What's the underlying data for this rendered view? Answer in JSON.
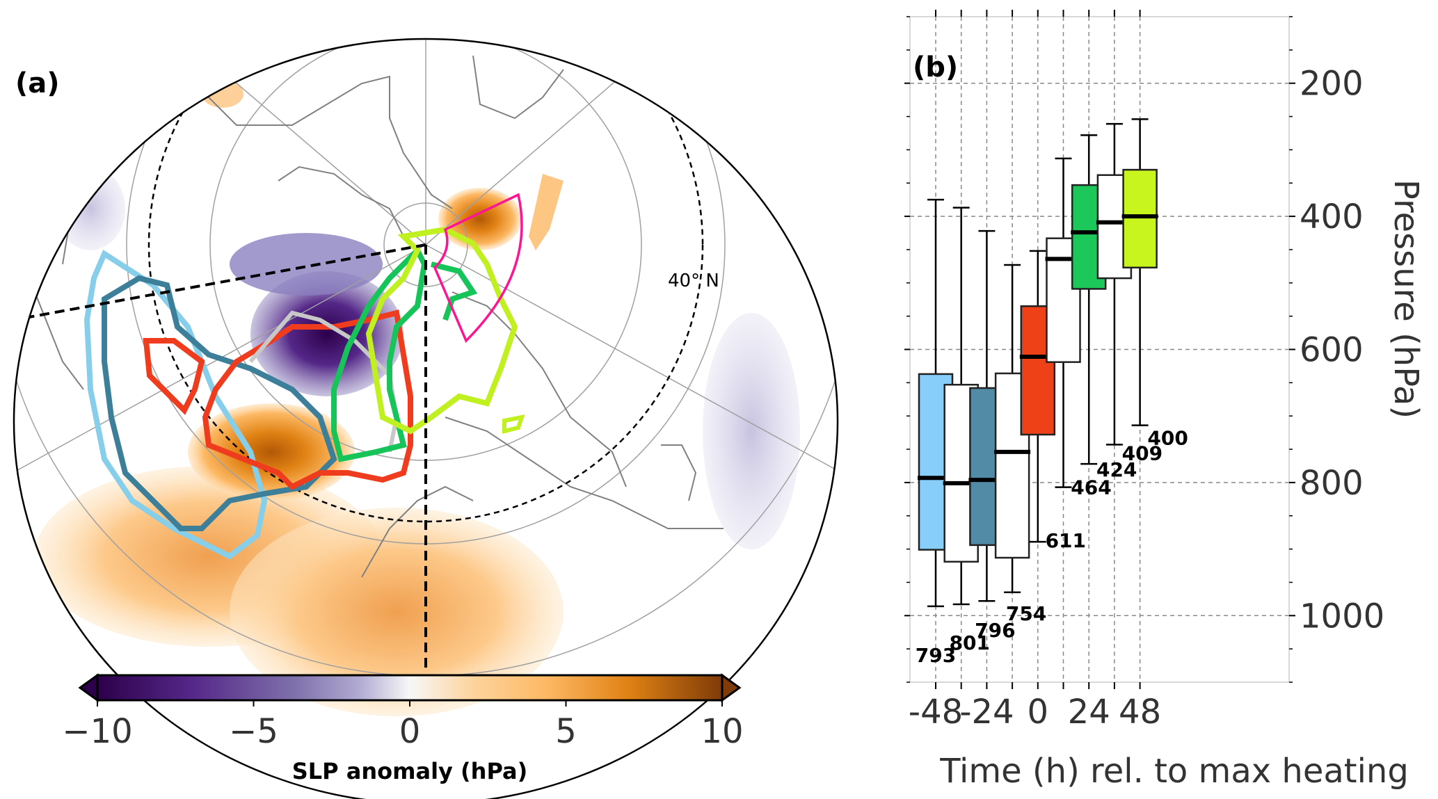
{
  "chart_data": [
    {
      "type": "map",
      "panel_label": "(a)",
      "description": "North polar stereographic map of sea-level pressure anomaly with contour outlines for successive time steps and a highlighted sector",
      "latitude_label": "40° N",
      "colorbar": {
        "title": "SLP anomaly (hPa)",
        "ticks": [
          -10,
          -5,
          0,
          5,
          10
        ],
        "tick_labels": [
          "−10",
          "−5",
          "0",
          "5",
          "10"
        ],
        "range": [
          -10,
          10
        ],
        "extend": "both",
        "colormap_low": "#2d004b",
        "colormap_mid": "#f7f7f7",
        "colormap_high": "#7f3b08"
      },
      "contour_colors": [
        "#87ceeb",
        "#3d7f99",
        "#f03c1e",
        "#c0c0c0",
        "#16c45a",
        "#c0f020"
      ],
      "sector_color": "#ff1493"
    },
    {
      "type": "box",
      "panel_label": "(b)",
      "xlabel": "Time (h) rel. to max heating",
      "ylabel": "Pressure (hPa)",
      "ylim": [
        1100,
        100
      ],
      "yticks": [
        200,
        400,
        600,
        800,
        1000
      ],
      "xticks": [
        -48,
        -24,
        0,
        24,
        48
      ],
      "grid": true,
      "categories": [
        -48,
        -36,
        -24,
        -12,
        0,
        12,
        24,
        36,
        48
      ],
      "boxes": [
        {
          "x": -48,
          "whisker_low": 986,
          "q1": 901,
          "median": 793,
          "q3": 637,
          "whisker_high": 375,
          "fill": "#87cefa",
          "label": "793"
        },
        {
          "x": -36,
          "whisker_low": 983,
          "q1": 919,
          "median": 801,
          "q3": 653,
          "whisker_high": 387,
          "fill": "#ffffff",
          "label": "801"
        },
        {
          "x": -24,
          "whisker_low": 978,
          "q1": 894,
          "median": 796,
          "q3": 658,
          "whisker_high": 422,
          "fill": "#528ba6",
          "label": "796"
        },
        {
          "x": -12,
          "whisker_low": 965,
          "q1": 913,
          "median": 754,
          "q3": 636,
          "whisker_high": 473,
          "fill": "#ffffff",
          "label": "754"
        },
        {
          "x": 0,
          "whisker_low": 889,
          "q1": 728,
          "median": 611,
          "q3": 535,
          "whisker_high": 452,
          "fill": "#ee4118",
          "label": "611"
        },
        {
          "x": 12,
          "whisker_low": 807,
          "q1": 619,
          "median": 464,
          "q3": 433,
          "whisker_high": 313,
          "fill": "#ffffff",
          "label": "464"
        },
        {
          "x": 24,
          "whisker_low": 772,
          "q1": 509,
          "median": 424,
          "q3": 353,
          "whisker_high": 278,
          "fill": "#1dc85a",
          "label": "424"
        },
        {
          "x": 36,
          "whisker_low": 743,
          "q1": 493,
          "median": 409,
          "q3": 338,
          "whisker_high": 261,
          "fill": "#ffffff",
          "label": "409"
        },
        {
          "x": 48,
          "whisker_low": 714,
          "q1": 477,
          "median": 400,
          "q3": 330,
          "whisker_high": 254,
          "fill": "#c8f51e",
          "label": "400"
        }
      ]
    }
  ]
}
